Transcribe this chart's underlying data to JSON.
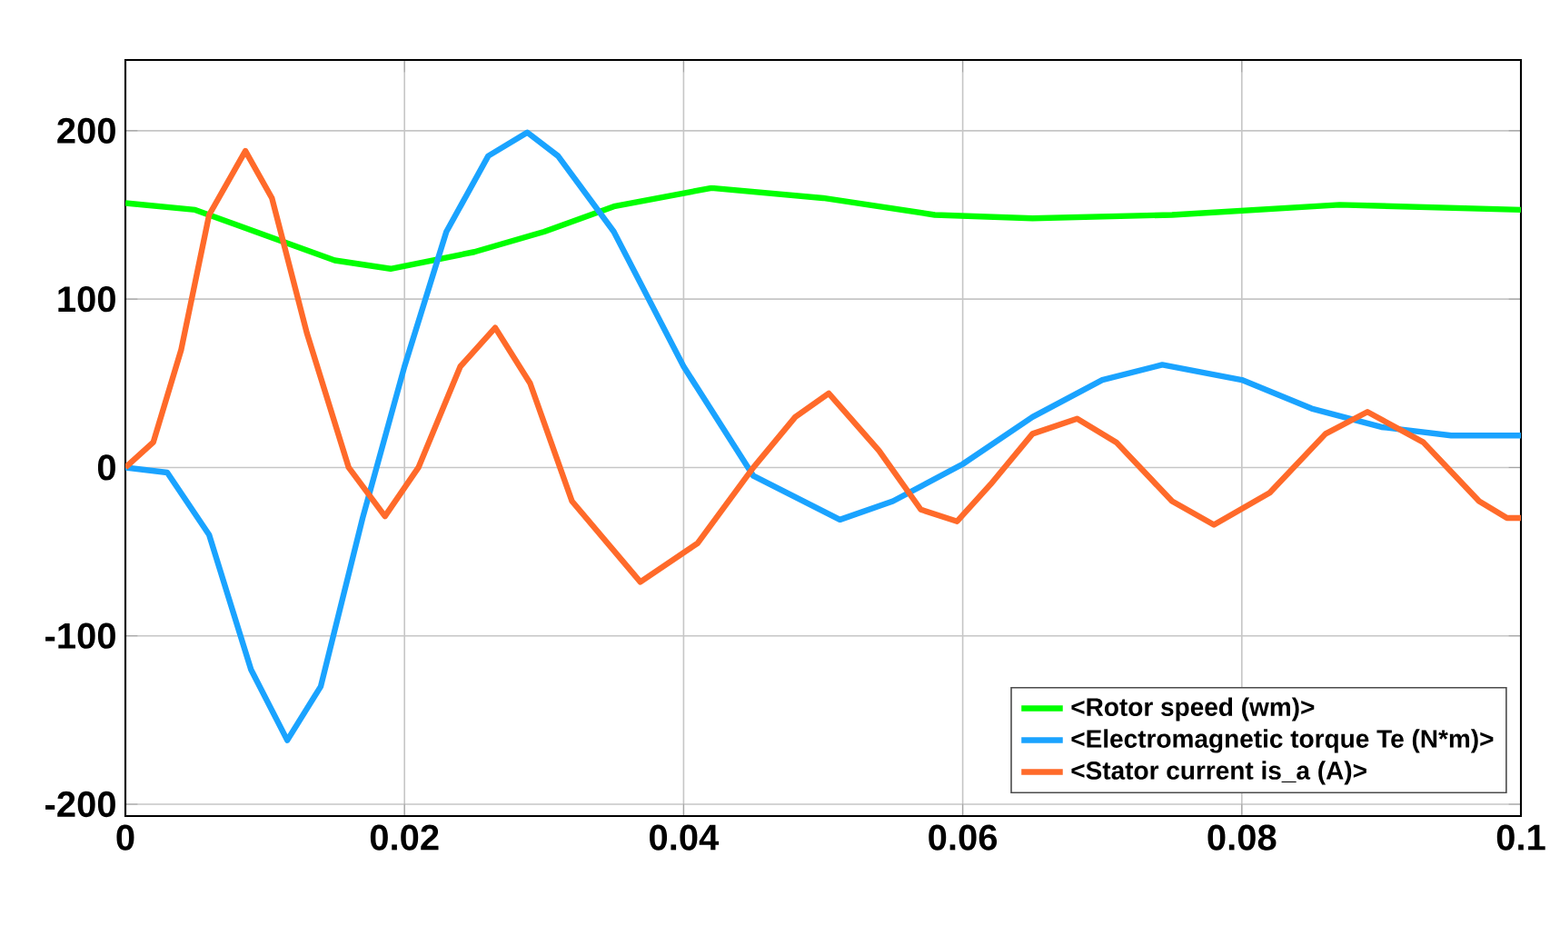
{
  "chart_data": {
    "type": "line",
    "xlim": [
      0,
      0.1
    ],
    "ylim": [
      -207,
      242
    ],
    "xticks": [
      0,
      0.02,
      0.04,
      0.06,
      0.08,
      0.1
    ],
    "yticks": [
      -200,
      -100,
      0,
      100,
      200
    ],
    "grid": true,
    "legend": "bottom right",
    "marker": "none",
    "line_style": "solid",
    "series": [
      {
        "name": "<Rotor speed (wm)>",
        "color": "#00ff00",
        "x": [
          0,
          0.005,
          0.01,
          0.015,
          0.019,
          0.025,
          0.03,
          0.035,
          0.042,
          0.05,
          0.058,
          0.065,
          0.075,
          0.087,
          0.1
        ],
        "values": [
          157,
          153,
          138,
          123,
          118,
          128,
          140,
          155,
          166,
          160,
          150,
          148,
          150,
          156,
          153
        ]
      },
      {
        "name": "<Electromagnetic torque Te (N*m)>",
        "color": "#1aa3ff",
        "x": [
          0,
          0.003,
          0.006,
          0.009,
          0.0116,
          0.014,
          0.017,
          0.02,
          0.023,
          0.026,
          0.0288,
          0.031,
          0.035,
          0.04,
          0.045,
          0.0512,
          0.055,
          0.06,
          0.065,
          0.07,
          0.0743,
          0.08,
          0.085,
          0.09,
          0.095,
          0.1
        ],
        "values": [
          0,
          -3,
          -40,
          -120,
          -162,
          -130,
          -30,
          60,
          140,
          185,
          199,
          185,
          140,
          60,
          -5,
          -31,
          -20,
          2,
          30,
          52,
          61,
          52,
          35,
          24,
          19,
          19
        ]
      },
      {
        "name": "<Stator current is_a (A)>",
        "color": "#ff6a2a",
        "x": [
          0,
          0.002,
          0.004,
          0.006,
          0.0086,
          0.0105,
          0.013,
          0.016,
          0.0186,
          0.021,
          0.024,
          0.0265,
          0.029,
          0.032,
          0.0369,
          0.041,
          0.045,
          0.048,
          0.0504,
          0.054,
          0.057,
          0.0596,
          0.062,
          0.065,
          0.0682,
          0.071,
          0.075,
          0.078,
          0.082,
          0.086,
          0.089,
          0.093,
          0.097,
          0.099,
          0.1
        ],
        "values": [
          0,
          15,
          70,
          150,
          188,
          160,
          80,
          0,
          -29,
          0,
          60,
          83,
          50,
          -20,
          -68,
          -45,
          0,
          30,
          44,
          10,
          -25,
          -32,
          -10,
          20,
          29,
          15,
          -20,
          -34,
          -15,
          20,
          33,
          15,
          -20,
          -30,
          -30
        ]
      }
    ]
  }
}
